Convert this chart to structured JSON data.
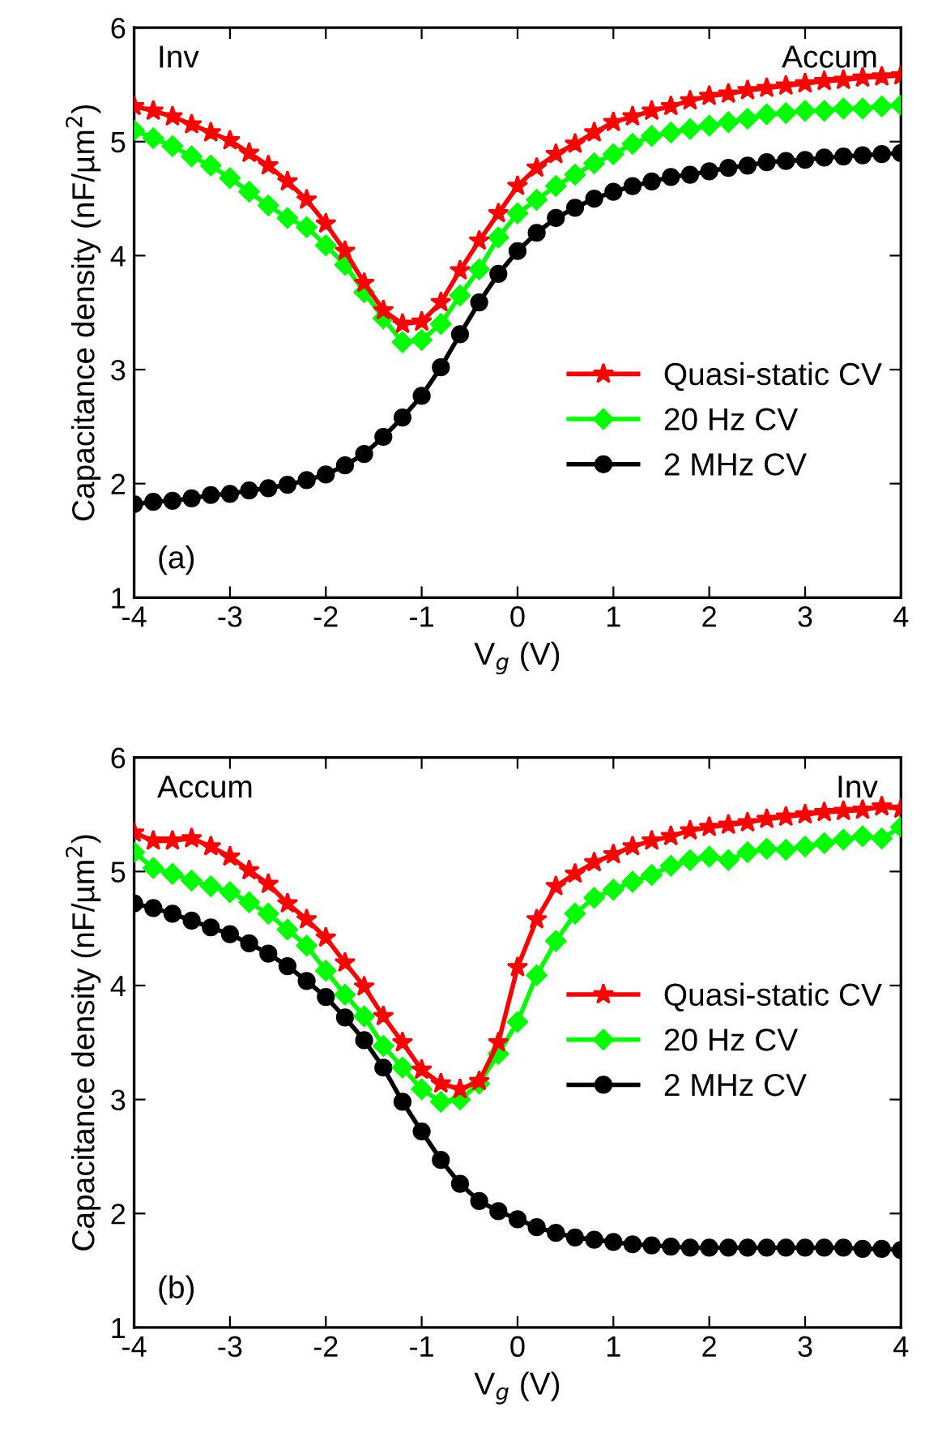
{
  "chart_data": [
    {
      "type": "line",
      "xlabel": "V$_{g}$ (V)",
      "ylabel": "Capacitance density (nF/µm$^{2}$)",
      "xlim": [
        -4,
        4
      ],
      "ylim": [
        1,
        6
      ],
      "xticks": [
        -4,
        -3,
        -2,
        -1,
        0,
        1,
        2,
        3,
        4
      ],
      "yticks": [
        1,
        2,
        3,
        4,
        5,
        6
      ],
      "grid": false,
      "legend": "lower right",
      "annotations": [
        "Inv",
        "Accum",
        "(a)"
      ],
      "x": [
        -4,
        -3.8,
        -3.6,
        -3.4,
        -3.2,
        -3.0,
        -2.8,
        -2.6,
        -2.4,
        -2.2,
        -2.0,
        -1.8,
        -1.6,
        -1.4,
        -1.2,
        -1.0,
        -0.8,
        -0.6,
        -0.4,
        -0.2,
        0,
        0.2,
        0.4,
        0.6,
        0.8,
        1.0,
        1.2,
        1.4,
        1.6,
        1.8,
        2.0,
        2.2,
        2.4,
        2.6,
        2.8,
        3.0,
        3.2,
        3.4,
        3.6,
        3.8,
        4.0
      ],
      "series": [
        {
          "name": "Quasi-static CV",
          "color": "#ff0000",
          "marker": "star",
          "values": [
            5.31,
            5.27,
            5.22,
            5.15,
            5.08,
            5.01,
            4.9,
            4.79,
            4.65,
            4.49,
            4.28,
            4.04,
            3.76,
            3.52,
            3.4,
            3.42,
            3.59,
            3.87,
            4.13,
            4.37,
            4.61,
            4.77,
            4.89,
            4.98,
            5.08,
            5.17,
            5.22,
            5.27,
            5.31,
            5.36,
            5.4,
            5.42,
            5.45,
            5.47,
            5.49,
            5.51,
            5.53,
            5.54,
            5.56,
            5.57,
            5.58
          ]
        },
        {
          "name": "20 Hz CV",
          "color": "#00ff00",
          "marker": "diamond",
          "values": [
            5.1,
            5.03,
            4.96,
            4.87,
            4.79,
            4.68,
            4.56,
            4.44,
            4.33,
            4.25,
            4.09,
            3.92,
            3.68,
            3.45,
            3.24,
            3.26,
            3.4,
            3.65,
            3.88,
            4.16,
            4.37,
            4.49,
            4.61,
            4.71,
            4.81,
            4.89,
            4.98,
            5.05,
            5.08,
            5.11,
            5.14,
            5.17,
            5.2,
            5.24,
            5.25,
            5.27,
            5.27,
            5.29,
            5.29,
            5.31,
            5.32
          ]
        },
        {
          "name": "2 MHz CV",
          "color": "#000000",
          "marker": "circle",
          "values": [
            1.82,
            1.84,
            1.85,
            1.87,
            1.9,
            1.91,
            1.94,
            1.96,
            1.99,
            2.03,
            2.08,
            2.16,
            2.26,
            2.41,
            2.58,
            2.77,
            3.02,
            3.31,
            3.59,
            3.84,
            4.04,
            4.2,
            4.33,
            4.42,
            4.5,
            4.56,
            4.61,
            4.65,
            4.69,
            4.71,
            4.74,
            4.77,
            4.79,
            4.82,
            4.83,
            4.84,
            4.86,
            4.87,
            4.88,
            4.89,
            4.9
          ]
        }
      ]
    },
    {
      "type": "line",
      "xlabel": "V$_{g}$ (V)",
      "ylabel": "Capacitance density (nF/µm$^{2}$)",
      "xlim": [
        -4,
        4
      ],
      "ylim": [
        1,
        6
      ],
      "xticks": [
        -4,
        -3,
        -2,
        -1,
        0,
        1,
        2,
        3,
        4
      ],
      "yticks": [
        1,
        2,
        3,
        4,
        5,
        6
      ],
      "grid": false,
      "legend": "center right",
      "annotations": [
        "Accum",
        "Inv",
        "(b)"
      ],
      "x": [
        -4,
        -3.8,
        -3.6,
        -3.4,
        -3.2,
        -3.0,
        -2.8,
        -2.6,
        -2.4,
        -2.2,
        -2.0,
        -1.8,
        -1.6,
        -1.4,
        -1.2,
        -1.0,
        -0.8,
        -0.6,
        -0.4,
        -0.2,
        0,
        0.2,
        0.4,
        0.6,
        0.8,
        1.0,
        1.2,
        1.4,
        1.6,
        1.8,
        2.0,
        2.2,
        2.4,
        2.6,
        2.8,
        3.0,
        3.2,
        3.4,
        3.6,
        3.8,
        4.0
      ],
      "series": [
        {
          "name": "Quasi-static CV",
          "color": "#ff0000",
          "marker": "star",
          "values": [
            5.34,
            5.27,
            5.27,
            5.29,
            5.22,
            5.13,
            5.01,
            4.89,
            4.72,
            4.58,
            4.42,
            4.2,
            3.99,
            3.73,
            3.5,
            3.26,
            3.14,
            3.09,
            3.16,
            3.5,
            4.16,
            4.58,
            4.87,
            4.98,
            5.08,
            5.15,
            5.22,
            5.27,
            5.31,
            5.36,
            5.39,
            5.41,
            5.43,
            5.46,
            5.48,
            5.5,
            5.52,
            5.53,
            5.54,
            5.57,
            5.55
          ]
        },
        {
          "name": "20 Hz CV",
          "color": "#00ff00",
          "marker": "diamond",
          "values": [
            5.17,
            5.03,
            4.98,
            4.92,
            4.87,
            4.82,
            4.73,
            4.63,
            4.49,
            4.35,
            4.13,
            3.92,
            3.73,
            3.47,
            3.28,
            3.09,
            2.98,
            3.0,
            3.14,
            3.4,
            3.68,
            4.09,
            4.39,
            4.63,
            4.77,
            4.84,
            4.91,
            4.97,
            5.05,
            5.1,
            5.13,
            5.1,
            5.17,
            5.2,
            5.19,
            5.22,
            5.25,
            5.28,
            5.31,
            5.29,
            5.39
          ]
        },
        {
          "name": "2 MHz CV",
          "color": "#000000",
          "marker": "circle",
          "values": [
            4.72,
            4.68,
            4.63,
            4.57,
            4.51,
            4.45,
            4.37,
            4.28,
            4.17,
            4.04,
            3.9,
            3.72,
            3.52,
            3.28,
            2.98,
            2.72,
            2.47,
            2.26,
            2.11,
            2.02,
            1.95,
            1.88,
            1.83,
            1.79,
            1.77,
            1.75,
            1.73,
            1.72,
            1.71,
            1.7,
            1.7,
            1.7,
            1.7,
            1.7,
            1.7,
            1.7,
            1.7,
            1.7,
            1.69,
            1.69,
            1.68
          ]
        }
      ]
    }
  ]
}
